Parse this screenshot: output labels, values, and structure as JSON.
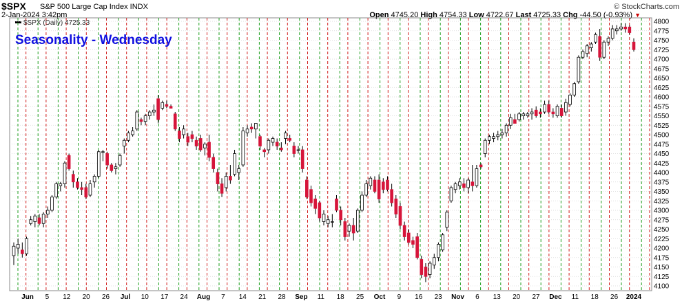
{
  "header": {
    "ticker": "$SPX",
    "name": "S&P 500 Large Cap Index INDX",
    "credit": "© StockCharts.com",
    "datetime": "2-Jan-2024 3:42pm",
    "open_label": "Open",
    "open": "4745.20",
    "high_label": "High",
    "high": "4754.33",
    "low_label": "Low",
    "low": "4722.67",
    "last_label": "Last",
    "last": "4725.33",
    "chg_label": "Chg",
    "chg": "-44.50 (-0.93%)",
    "legend": "$SPX (Daily) 4725.33"
  },
  "colors": {
    "up": "#ffffff",
    "down": "#d6153a",
    "outline": "#000000",
    "green_line": "#1e9e1e",
    "red_line": "#d11f1f",
    "title": "#1010e0"
  },
  "chart_data": {
    "type": "candlestick",
    "title": "Seasonality - Wednesday",
    "y_ticks": [
      "4800",
      "4775",
      "4750",
      "4725",
      "4700",
      "4675",
      "4650",
      "4625",
      "4600",
      "4575",
      "4550",
      "4525",
      "4500",
      "4475",
      "4450",
      "4425",
      "4400",
      "4375",
      "4350",
      "4325",
      "4300",
      "4275",
      "4250",
      "4225",
      "4200",
      "4175",
      "4150",
      "4125",
      "4100"
    ],
    "ylim": [
      4090,
      4810
    ],
    "x_ticks": [
      "Jun",
      "5",
      "12",
      "20",
      "26",
      "Jul",
      "10",
      "17",
      "24",
      "Aug",
      "7",
      "14",
      "21",
      "28",
      "Sep",
      "11",
      "18",
      "25",
      "Oct",
      "9",
      "16",
      "23",
      "Nov",
      "6",
      "13",
      "20",
      "27",
      "Dec",
      "11",
      "18",
      "26",
      "2024"
    ],
    "x_ticks_bold": [
      "Jun",
      "Jul",
      "Aug",
      "Sep",
      "Oct",
      "Nov",
      "Dec",
      "2024"
    ],
    "vertical_lines": "green line at each Monday, red dashed line at each Wednesday",
    "candles": [
      {
        "o": 4180,
        "h": 4215,
        "l": 4155,
        "c": 4205
      },
      {
        "o": 4200,
        "h": 4225,
        "l": 4185,
        "c": 4210
      },
      {
        "o": 4195,
        "h": 4215,
        "l": 4175,
        "c": 4185
      },
      {
        "o": 4185,
        "h": 4230,
        "l": 4180,
        "c": 4225
      },
      {
        "o": 4265,
        "h": 4285,
        "l": 4260,
        "c": 4275
      },
      {
        "o": 4270,
        "h": 4290,
        "l": 4255,
        "c": 4285
      },
      {
        "o": 4280,
        "h": 4290,
        "l": 4260,
        "c": 4265
      },
      {
        "o": 4265,
        "h": 4295,
        "l": 4255,
        "c": 4290
      },
      {
        "o": 4290,
        "h": 4310,
        "l": 4280,
        "c": 4300
      },
      {
        "o": 4300,
        "h": 4340,
        "l": 4295,
        "c": 4335
      },
      {
        "o": 4335,
        "h": 4375,
        "l": 4330,
        "c": 4370
      },
      {
        "o": 4365,
        "h": 4375,
        "l": 4350,
        "c": 4370
      },
      {
        "o": 4370,
        "h": 4430,
        "l": 4360,
        "c": 4425
      },
      {
        "o": 4445,
        "h": 4450,
        "l": 4405,
        "c": 4410
      },
      {
        "o": 4395,
        "h": 4405,
        "l": 4360,
        "c": 4375
      },
      {
        "o": 4375,
        "h": 4385,
        "l": 4355,
        "c": 4360
      },
      {
        "o": 4360,
        "h": 4375,
        "l": 4340,
        "c": 4355
      },
      {
        "o": 4360,
        "h": 4370,
        "l": 4330,
        "c": 4335
      },
      {
        "o": 4340,
        "h": 4380,
        "l": 4335,
        "c": 4370
      },
      {
        "o": 4375,
        "h": 4395,
        "l": 4360,
        "c": 4390
      },
      {
        "o": 4390,
        "h": 4460,
        "l": 4385,
        "c": 4455
      },
      {
        "o": 4455,
        "h": 4460,
        "l": 4430,
        "c": 4455
      },
      {
        "o": 4450,
        "h": 4455,
        "l": 4410,
        "c": 4420
      },
      {
        "o": 4420,
        "h": 4425,
        "l": 4400,
        "c": 4405
      },
      {
        "o": 4410,
        "h": 4425,
        "l": 4395,
        "c": 4415
      },
      {
        "o": 4420,
        "h": 4450,
        "l": 4415,
        "c": 4445
      },
      {
        "o": 4470,
        "h": 4490,
        "l": 4450,
        "c": 4485
      },
      {
        "o": 4485,
        "h": 4510,
        "l": 4480,
        "c": 4505
      },
      {
        "o": 4500,
        "h": 4520,
        "l": 4495,
        "c": 4510
      },
      {
        "o": 4515,
        "h": 4565,
        "l": 4510,
        "c": 4560
      },
      {
        "o": 4540,
        "h": 4545,
        "l": 4525,
        "c": 4535
      },
      {
        "o": 4535,
        "h": 4555,
        "l": 4525,
        "c": 4550
      },
      {
        "o": 4550,
        "h": 4565,
        "l": 4540,
        "c": 4560
      },
      {
        "o": 4560,
        "h": 4580,
        "l": 4550,
        "c": 4565
      },
      {
        "o": 4595,
        "h": 4605,
        "l": 4530,
        "c": 4540
      },
      {
        "o": 4570,
        "h": 4590,
        "l": 4565,
        "c": 4585
      },
      {
        "o": 4580,
        "h": 4590,
        "l": 4570,
        "c": 4575
      },
      {
        "o": 4575,
        "h": 4580,
        "l": 4570,
        "c": 4570
      },
      {
        "o": 4555,
        "h": 4560,
        "l": 4510,
        "c": 4515
      },
      {
        "o": 4510,
        "h": 4520,
        "l": 4480,
        "c": 4490
      },
      {
        "o": 4500,
        "h": 4525,
        "l": 4490,
        "c": 4515
      },
      {
        "o": 4495,
        "h": 4505,
        "l": 4470,
        "c": 4480
      },
      {
        "o": 4500,
        "h": 4510,
        "l": 4480,
        "c": 4490
      },
      {
        "o": 4485,
        "h": 4495,
        "l": 4460,
        "c": 4470
      },
      {
        "o": 4490,
        "h": 4500,
        "l": 4455,
        "c": 4460
      },
      {
        "o": 4465,
        "h": 4480,
        "l": 4445,
        "c": 4475
      },
      {
        "o": 4480,
        "h": 4500,
        "l": 4430,
        "c": 4440
      },
      {
        "o": 4440,
        "h": 4450,
        "l": 4400,
        "c": 4410
      },
      {
        "o": 4400,
        "h": 4410,
        "l": 4350,
        "c": 4370
      },
      {
        "o": 4370,
        "h": 4385,
        "l": 4335,
        "c": 4345
      },
      {
        "o": 4360,
        "h": 4400,
        "l": 4350,
        "c": 4390
      },
      {
        "o": 4390,
        "h": 4420,
        "l": 4370,
        "c": 4380
      },
      {
        "o": 4395,
        "h": 4460,
        "l": 4390,
        "c": 4450
      },
      {
        "o": 4400,
        "h": 4420,
        "l": 4380,
        "c": 4410
      },
      {
        "o": 4420,
        "h": 4520,
        "l": 4415,
        "c": 4510
      },
      {
        "o": 4505,
        "h": 4525,
        "l": 4495,
        "c": 4515
      },
      {
        "o": 4520,
        "h": 4530,
        "l": 4505,
        "c": 4515
      },
      {
        "o": 4515,
        "h": 4530,
        "l": 4490,
        "c": 4530
      },
      {
        "o": 4495,
        "h": 4500,
        "l": 4460,
        "c": 4470
      },
      {
        "o": 4460,
        "h": 4465,
        "l": 4440,
        "c": 4455
      },
      {
        "o": 4460,
        "h": 4490,
        "l": 4450,
        "c": 4485
      },
      {
        "o": 4480,
        "h": 4495,
        "l": 4470,
        "c": 4490
      },
      {
        "o": 4480,
        "h": 4490,
        "l": 4460,
        "c": 4470
      },
      {
        "o": 4465,
        "h": 4480,
        "l": 4455,
        "c": 4460
      },
      {
        "o": 4490,
        "h": 4510,
        "l": 4475,
        "c": 4505
      },
      {
        "o": 4490,
        "h": 4500,
        "l": 4480,
        "c": 4485
      },
      {
        "o": 4470,
        "h": 4480,
        "l": 4440,
        "c": 4450
      },
      {
        "o": 4460,
        "h": 4470,
        "l": 4450,
        "c": 4460
      },
      {
        "o": 4460,
        "h": 4470,
        "l": 4400,
        "c": 4410
      },
      {
        "o": 4380,
        "h": 4390,
        "l": 4330,
        "c": 4335
      },
      {
        "o": 4355,
        "h": 4365,
        "l": 4310,
        "c": 4320
      },
      {
        "o": 4330,
        "h": 4340,
        "l": 4290,
        "c": 4305
      },
      {
        "o": 4320,
        "h": 4325,
        "l": 4270,
        "c": 4280
      },
      {
        "o": 4270,
        "h": 4300,
        "l": 4260,
        "c": 4290
      },
      {
        "o": 4265,
        "h": 4285,
        "l": 4255,
        "c": 4275
      },
      {
        "o": 4270,
        "h": 4290,
        "l": 4255,
        "c": 4270
      },
      {
        "o": 4330,
        "h": 4340,
        "l": 4295,
        "c": 4300
      },
      {
        "o": 4300,
        "h": 4310,
        "l": 4260,
        "c": 4275
      },
      {
        "o": 4270,
        "h": 4280,
        "l": 4220,
        "c": 4230
      },
      {
        "o": 4245,
        "h": 4265,
        "l": 4230,
        "c": 4260
      },
      {
        "o": 4260,
        "h": 4280,
        "l": 4220,
        "c": 4240
      },
      {
        "o": 4245,
        "h": 4305,
        "l": 4240,
        "c": 4300
      },
      {
        "o": 4300,
        "h": 4350,
        "l": 4295,
        "c": 4340
      },
      {
        "o": 4340,
        "h": 4380,
        "l": 4335,
        "c": 4370
      },
      {
        "o": 4365,
        "h": 4390,
        "l": 4355,
        "c": 4385
      },
      {
        "o": 4380,
        "h": 4390,
        "l": 4345,
        "c": 4350
      },
      {
        "o": 4380,
        "h": 4395,
        "l": 4320,
        "c": 4330
      },
      {
        "o": 4375,
        "h": 4385,
        "l": 4345,
        "c": 4355
      },
      {
        "o": 4380,
        "h": 4390,
        "l": 4350,
        "c": 4355
      },
      {
        "o": 4355,
        "h": 4370,
        "l": 4310,
        "c": 4320
      },
      {
        "o": 4330,
        "h": 4340,
        "l": 4280,
        "c": 4290
      },
      {
        "o": 4310,
        "h": 4320,
        "l": 4250,
        "c": 4260
      },
      {
        "o": 4260,
        "h": 4270,
        "l": 4220,
        "c": 4230
      },
      {
        "o": 4240,
        "h": 4250,
        "l": 4210,
        "c": 4215
      },
      {
        "o": 4220,
        "h": 4230,
        "l": 4200,
        "c": 4210
      },
      {
        "o": 4230,
        "h": 4240,
        "l": 4170,
        "c": 4175
      },
      {
        "o": 4170,
        "h": 4180,
        "l": 4120,
        "c": 4130
      },
      {
        "o": 4150,
        "h": 4160,
        "l": 4110,
        "c": 4125
      },
      {
        "o": 4130,
        "h": 4165,
        "l": 4120,
        "c": 4160
      },
      {
        "o": 4155,
        "h": 4185,
        "l": 4145,
        "c": 4175
      },
      {
        "o": 4175,
        "h": 4215,
        "l": 4165,
        "c": 4210
      },
      {
        "o": 4195,
        "h": 4240,
        "l": 4190,
        "c": 4235
      },
      {
        "o": 4255,
        "h": 4300,
        "l": 4245,
        "c": 4295
      },
      {
        "o": 4325,
        "h": 4365,
        "l": 4320,
        "c": 4360
      },
      {
        "o": 4355,
        "h": 4375,
        "l": 4345,
        "c": 4370
      },
      {
        "o": 4365,
        "h": 4385,
        "l": 4355,
        "c": 4375
      },
      {
        "o": 4370,
        "h": 4385,
        "l": 4350,
        "c": 4360
      },
      {
        "o": 4360,
        "h": 4385,
        "l": 4345,
        "c": 4380
      },
      {
        "o": 4375,
        "h": 4420,
        "l": 4350,
        "c": 4365
      },
      {
        "o": 4365,
        "h": 4420,
        "l": 4360,
        "c": 4410
      },
      {
        "o": 4420,
        "h": 4425,
        "l": 4410,
        "c": 4415
      },
      {
        "o": 4450,
        "h": 4490,
        "l": 4440,
        "c": 4485
      },
      {
        "o": 4485,
        "h": 4500,
        "l": 4475,
        "c": 4495
      },
      {
        "o": 4490,
        "h": 4505,
        "l": 4480,
        "c": 4495
      },
      {
        "o": 4495,
        "h": 4510,
        "l": 4485,
        "c": 4500
      },
      {
        "o": 4500,
        "h": 4515,
        "l": 4490,
        "c": 4505
      },
      {
        "o": 4505,
        "h": 4530,
        "l": 4495,
        "c": 4525
      },
      {
        "o": 4525,
        "h": 4555,
        "l": 4515,
        "c": 4545
      },
      {
        "o": 4540,
        "h": 4555,
        "l": 4530,
        "c": 4530
      },
      {
        "o": 4540,
        "h": 4560,
        "l": 4535,
        "c": 4555
      },
      {
        "o": 4550,
        "h": 4560,
        "l": 4540,
        "c": 4555
      },
      {
        "o": 4550,
        "h": 4560,
        "l": 4545,
        "c": 4555
      },
      {
        "o": 4555,
        "h": 4570,
        "l": 4540,
        "c": 4560
      },
      {
        "o": 4565,
        "h": 4575,
        "l": 4545,
        "c": 4550
      },
      {
        "o": 4560,
        "h": 4570,
        "l": 4545,
        "c": 4555
      },
      {
        "o": 4560,
        "h": 4590,
        "l": 4555,
        "c": 4580
      },
      {
        "o": 4580,
        "h": 4590,
        "l": 4555,
        "c": 4560
      },
      {
        "o": 4560,
        "h": 4570,
        "l": 4545,
        "c": 4555
      },
      {
        "o": 4550,
        "h": 4580,
        "l": 4545,
        "c": 4575
      },
      {
        "o": 4570,
        "h": 4580,
        "l": 4545,
        "c": 4550
      },
      {
        "o": 4560,
        "h": 4595,
        "l": 4550,
        "c": 4585
      },
      {
        "o": 4580,
        "h": 4610,
        "l": 4575,
        "c": 4605
      },
      {
        "o": 4605,
        "h": 4640,
        "l": 4600,
        "c": 4635
      },
      {
        "o": 4640,
        "h": 4710,
        "l": 4635,
        "c": 4705
      },
      {
        "o": 4705,
        "h": 4725,
        "l": 4700,
        "c": 4720
      },
      {
        "o": 4715,
        "h": 4740,
        "l": 4705,
        "c": 4735
      },
      {
        "o": 4730,
        "h": 4745,
        "l": 4720,
        "c": 4740
      },
      {
        "o": 4745,
        "h": 4770,
        "l": 4740,
        "c": 4765
      },
      {
        "o": 4760,
        "h": 4780,
        "l": 4695,
        "c": 4705
      },
      {
        "o": 4705,
        "h": 4750,
        "l": 4700,
        "c": 4745
      },
      {
        "o": 4745,
        "h": 4760,
        "l": 4735,
        "c": 4755
      },
      {
        "o": 4755,
        "h": 4790,
        "l": 4750,
        "c": 4780
      },
      {
        "o": 4775,
        "h": 4790,
        "l": 4765,
        "c": 4780
      },
      {
        "o": 4780,
        "h": 4795,
        "l": 4775,
        "c": 4785
      },
      {
        "o": 4785,
        "h": 4795,
        "l": 4770,
        "c": 4780
      },
      {
        "o": 4785,
        "h": 4790,
        "l": 4765,
        "c": 4770
      },
      {
        "o": 4745,
        "h": 4755,
        "l": 4720,
        "c": 4725
      }
    ]
  }
}
